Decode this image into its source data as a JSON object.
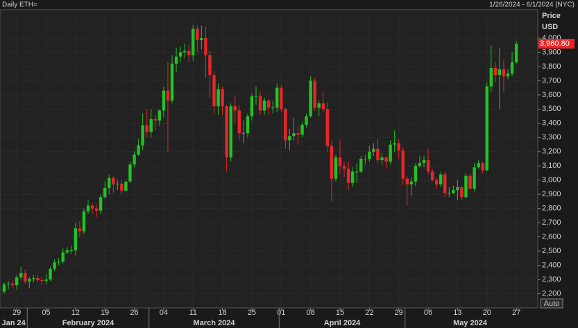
{
  "chart_data": {
    "type": "candlestick",
    "title": "Daily ETH=",
    "range_label": "1/26/2024 - 6/1/2024 (NYC)",
    "y_axis_title": "Price",
    "y_axis_unit": "USD",
    "scale_button": "Auto",
    "last_price_label": "3,960.80",
    "up_color": "#22c322",
    "down_color": "#e8262a",
    "grid": true,
    "x": [
      "2024-01-26",
      "2024-01-27",
      "2024-01-28",
      "2024-01-29",
      "2024-01-30",
      "2024-01-31",
      "2024-02-01",
      "2024-02-02",
      "2024-02-03",
      "2024-02-04",
      "2024-02-05",
      "2024-02-06",
      "2024-02-07",
      "2024-02-08",
      "2024-02-09",
      "2024-02-10",
      "2024-02-11",
      "2024-02-12",
      "2024-02-13",
      "2024-02-14",
      "2024-02-15",
      "2024-02-16",
      "2024-02-17",
      "2024-02-18",
      "2024-02-19",
      "2024-02-20",
      "2024-02-21",
      "2024-02-22",
      "2024-02-23",
      "2024-02-24",
      "2024-02-25",
      "2024-02-26",
      "2024-02-27",
      "2024-02-28",
      "2024-02-29",
      "2024-03-01",
      "2024-03-02",
      "2024-03-03",
      "2024-03-04",
      "2024-03-05",
      "2024-03-06",
      "2024-03-07",
      "2024-03-08",
      "2024-03-09",
      "2024-03-10",
      "2024-03-11",
      "2024-03-12",
      "2024-03-13",
      "2024-03-14",
      "2024-03-15",
      "2024-03-16",
      "2024-03-17",
      "2024-03-18",
      "2024-03-19",
      "2024-03-20",
      "2024-03-21",
      "2024-03-22",
      "2024-03-23",
      "2024-03-24",
      "2024-03-25",
      "2024-03-26",
      "2024-03-27",
      "2024-03-28",
      "2024-03-29",
      "2024-03-30",
      "2024-03-31",
      "2024-04-01",
      "2024-04-02",
      "2024-04-03",
      "2024-04-04",
      "2024-04-05",
      "2024-04-06",
      "2024-04-07",
      "2024-04-08",
      "2024-04-09",
      "2024-04-10",
      "2024-04-11",
      "2024-04-12",
      "2024-04-13",
      "2024-04-14",
      "2024-04-15",
      "2024-04-16",
      "2024-04-17",
      "2024-04-18",
      "2024-04-19",
      "2024-04-20",
      "2024-04-21",
      "2024-04-22",
      "2024-04-23",
      "2024-04-24",
      "2024-04-25",
      "2024-04-26",
      "2024-04-27",
      "2024-04-28",
      "2024-04-29",
      "2024-04-30",
      "2024-05-01",
      "2024-05-02",
      "2024-05-03",
      "2024-05-04",
      "2024-05-05",
      "2024-05-06",
      "2024-05-07",
      "2024-05-08",
      "2024-05-09",
      "2024-05-10",
      "2024-05-11",
      "2024-05-12",
      "2024-05-13",
      "2024-05-14",
      "2024-05-15",
      "2024-05-16",
      "2024-05-17",
      "2024-05-18",
      "2024-05-19",
      "2024-05-20",
      "2024-05-21",
      "2024-05-22",
      "2024-05-23",
      "2024-05-24",
      "2024-05-25",
      "2024-05-26",
      "2024-05-27"
    ],
    "open": [
      2215,
      2265,
      2270,
      2260,
      2315,
      2345,
      2285,
      2305,
      2310,
      2295,
      2290,
      2300,
      2375,
      2420,
      2425,
      2490,
      2505,
      2505,
      2660,
      2640,
      2780,
      2820,
      2800,
      2785,
      2880,
      2945,
      3015,
      2970,
      2975,
      2925,
      2990,
      3110,
      3180,
      3245,
      3385,
      3340,
      3430,
      3420,
      3490,
      3630,
      3560,
      3820,
      3870,
      3900,
      3910,
      3880,
      4065,
      3985,
      4000,
      3880,
      3740,
      3520,
      3640,
      3520,
      3160,
      3520,
      3490,
      3330,
      3330,
      3450,
      3590,
      3590,
      3490,
      3560,
      3510,
      3510,
      3650,
      3500,
      3280,
      3310,
      3330,
      3320,
      3390,
      3450,
      3700,
      3510,
      3540,
      3500,
      3240,
      3010,
      3160,
      3100,
      3080,
      2980,
      3060,
      3060,
      3150,
      3150,
      3200,
      3220,
      3140,
      3160,
      3130,
      3250,
      3260,
      3210,
      3010,
      2970,
      2990,
      3100,
      3120,
      3140,
      3060,
      3000,
      2970,
      3040,
      2910,
      2910,
      2930,
      2950,
      2880,
      3030,
      2940,
      3090,
      3120,
      3070,
      3660,
      3790,
      3740,
      3780,
      3730,
      3750,
      3830
    ],
    "high": [
      2280,
      2290,
      2290,
      2330,
      2390,
      2370,
      2320,
      2330,
      2330,
      2320,
      2340,
      2390,
      2440,
      2450,
      2520,
      2530,
      2540,
      2700,
      2710,
      2800,
      2860,
      2840,
      2830,
      2900,
      2990,
      3040,
      3030,
      3000,
      3000,
      2990,
      3130,
      3200,
      3290,
      3470,
      3500,
      3500,
      3460,
      3500,
      3660,
      3830,
      3880,
      3930,
      3940,
      3960,
      3950,
      4090,
      4090,
      4090,
      4080,
      3910,
      3770,
      3680,
      3660,
      3530,
      3540,
      3590,
      3530,
      3420,
      3470,
      3610,
      3660,
      3620,
      3580,
      3570,
      3560,
      3680,
      3670,
      3510,
      3360,
      3440,
      3380,
      3410,
      3470,
      3730,
      3720,
      3560,
      3620,
      3550,
      3280,
      3180,
      3280,
      3130,
      3130,
      3090,
      3120,
      3170,
      3180,
      3240,
      3260,
      3290,
      3190,
      3170,
      3280,
      3350,
      3290,
      3230,
      3030,
      3020,
      3120,
      3170,
      3170,
      3220,
      3080,
      3020,
      3060,
      3060,
      2950,
      2960,
      3000,
      2960,
      3050,
      3050,
      3120,
      3140,
      3130,
      3690,
      3950,
      3830,
      3930,
      3850,
      3780,
      3900,
      3980
    ],
    "low": [
      2200,
      2230,
      2240,
      2230,
      2300,
      2270,
      2240,
      2280,
      2280,
      2260,
      2270,
      2290,
      2360,
      2400,
      2410,
      2480,
      2480,
      2470,
      2600,
      2620,
      2760,
      2760,
      2740,
      2760,
      2870,
      2900,
      2910,
      2930,
      2900,
      2920,
      2980,
      3090,
      3170,
      3210,
      3300,
      3300,
      3350,
      3380,
      3440,
      3200,
      3540,
      3760,
      3830,
      3860,
      3830,
      3840,
      3900,
      3920,
      3720,
      3580,
      3460,
      3460,
      3460,
      3060,
      3130,
      3400,
      3280,
      3260,
      3300,
      3420,
      3530,
      3460,
      3460,
      3460,
      3470,
      3480,
      3480,
      3220,
      3210,
      3280,
      3250,
      3300,
      3370,
      3440,
      3490,
      3450,
      3480,
      3200,
      2850,
      2990,
      3040,
      3020,
      2930,
      2950,
      2980,
      3050,
      3110,
      3130,
      3170,
      3120,
      3110,
      3080,
      3110,
      3200,
      3150,
      2970,
      2820,
      2890,
      2960,
      3090,
      3090,
      3040,
      2990,
      2940,
      2950,
      2880,
      2880,
      2900,
      2860,
      2860,
      2870,
      2930,
      2920,
      3080,
      3050,
      3060,
      3620,
      3690,
      3500,
      3620,
      3710,
      3730,
      3820
    ],
    "close": [
      2265,
      2270,
      2260,
      2315,
      2345,
      2285,
      2305,
      2310,
      2295,
      2290,
      2300,
      2375,
      2420,
      2425,
      2490,
      2505,
      2505,
      2660,
      2640,
      2780,
      2820,
      2800,
      2785,
      2880,
      2945,
      3015,
      2970,
      2975,
      2925,
      2990,
      3110,
      3180,
      3245,
      3385,
      3340,
      3430,
      3420,
      3490,
      3630,
      3560,
      3820,
      3870,
      3900,
      3910,
      3880,
      4065,
      3985,
      4000,
      3880,
      3740,
      3520,
      3640,
      3520,
      3160,
      3520,
      3490,
      3330,
      3330,
      3450,
      3590,
      3590,
      3490,
      3560,
      3510,
      3510,
      3650,
      3500,
      3280,
      3310,
      3330,
      3320,
      3390,
      3450,
      3700,
      3510,
      3540,
      3500,
      3240,
      3010,
      3160,
      3100,
      3080,
      2980,
      3060,
      3060,
      3150,
      3150,
      3200,
      3220,
      3140,
      3160,
      3130,
      3250,
      3260,
      3210,
      3010,
      2970,
      2990,
      3100,
      3120,
      3140,
      3060,
      3000,
      2970,
      3040,
      2910,
      2910,
      2930,
      2950,
      2880,
      3030,
      2940,
      3090,
      3120,
      3070,
      3660,
      3790,
      3740,
      3780,
      3730,
      3750,
      3830,
      3960.8
    ],
    "ylim": [
      2100,
      4200
    ],
    "yticks": [
      {
        "value": 2200,
        "label": "2,200"
      },
      {
        "value": 2300,
        "label": "2,300"
      },
      {
        "value": 2400,
        "label": "2,400"
      },
      {
        "value": 2500,
        "label": "2,500"
      },
      {
        "value": 2600,
        "label": "2,600"
      },
      {
        "value": 2700,
        "label": "2,700"
      },
      {
        "value": 2800,
        "label": "2,800"
      },
      {
        "value": 2900,
        "label": "2,900"
      },
      {
        "value": 3000,
        "label": "3,000"
      },
      {
        "value": 3100,
        "label": "3,100"
      },
      {
        "value": 3200,
        "label": "3,200"
      },
      {
        "value": 3300,
        "label": "3,300"
      },
      {
        "value": 3400,
        "label": "3,400"
      },
      {
        "value": 3500,
        "label": "3,500"
      },
      {
        "value": 3600,
        "label": "3,600"
      },
      {
        "value": 3700,
        "label": "3,700"
      },
      {
        "value": 3800,
        "label": "3,800"
      },
      {
        "value": 3900,
        "label": "3,900"
      },
      {
        "value": 4000,
        "label": "4,000"
      }
    ],
    "xticks": [
      {
        "value": "2024-01-29",
        "label": "29"
      },
      {
        "value": "2024-02-05",
        "label": "05"
      },
      {
        "value": "2024-02-12",
        "label": "12"
      },
      {
        "value": "2024-02-19",
        "label": "19"
      },
      {
        "value": "2024-02-26",
        "label": "26"
      },
      {
        "value": "2024-03-04",
        "label": "04"
      },
      {
        "value": "2024-03-11",
        "label": "11"
      },
      {
        "value": "2024-03-18",
        "label": "18"
      },
      {
        "value": "2024-03-25",
        "label": "25"
      },
      {
        "value": "2024-04-01",
        "label": "01"
      },
      {
        "value": "2024-04-08",
        "label": "08"
      },
      {
        "value": "2024-04-15",
        "label": "15"
      },
      {
        "value": "2024-04-22",
        "label": "22"
      },
      {
        "value": "2024-04-29",
        "label": "29"
      },
      {
        "value": "2024-05-06",
        "label": "06"
      },
      {
        "value": "2024-05-13",
        "label": "13"
      },
      {
        "value": "2024-05-20",
        "label": "20"
      },
      {
        "value": "2024-05-27",
        "label": "27"
      }
    ],
    "month_labels": [
      {
        "value": "2024-01",
        "label": "Jan 24"
      },
      {
        "value": "2024-02",
        "label": "February 2024"
      },
      {
        "value": "2024-03",
        "label": "March 2024"
      },
      {
        "value": "2024-04",
        "label": "April 2024"
      },
      {
        "value": "2024-05",
        "label": "May 2024"
      }
    ]
  }
}
